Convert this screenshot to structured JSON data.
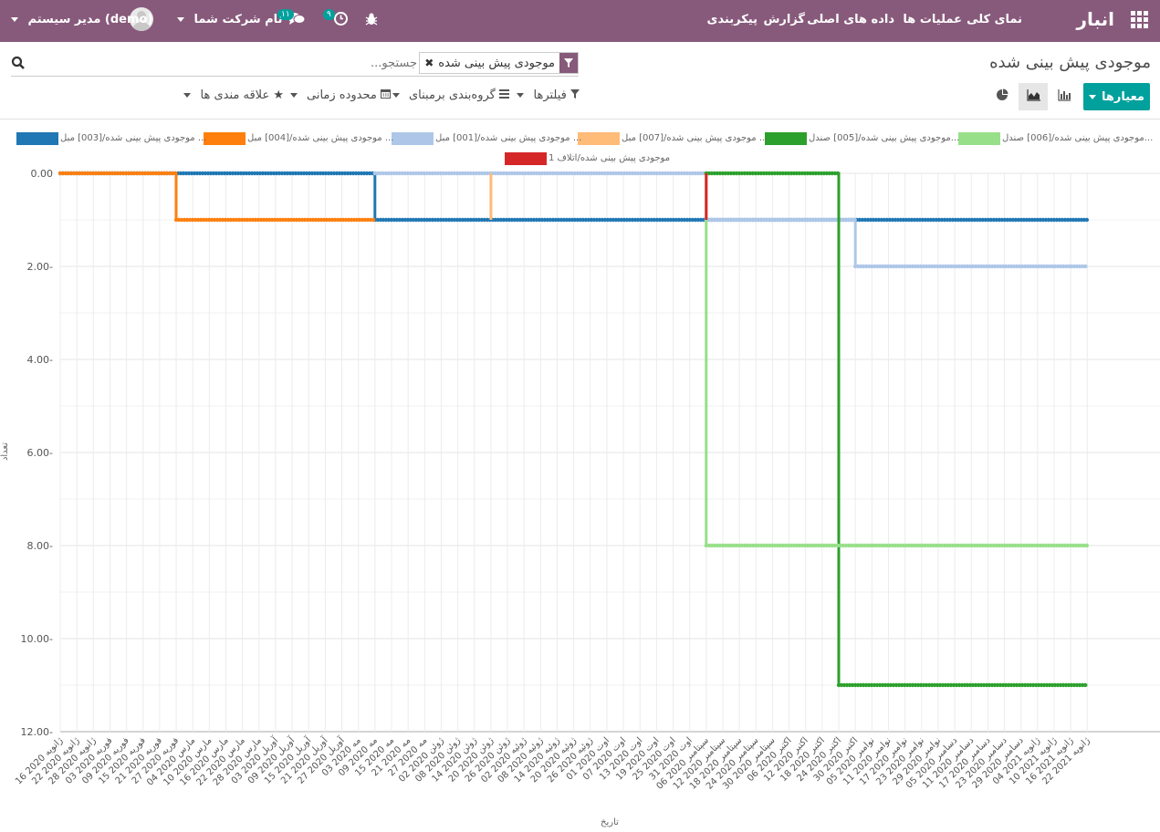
{
  "navbar": {
    "brand": "انبار",
    "menu": [
      "نمای کلی",
      "عملیات ها",
      "داده های اصلی",
      "گزارش",
      "پیکربندی"
    ],
    "activity_count": "۹",
    "messages_count": "۱۱",
    "company": "نام شرکت شما",
    "user": "مدیر سیستم (demo)"
  },
  "control_panel": {
    "title": "موجودی پیش بینی شده",
    "search_facet": "موجودی پیش بینی شده",
    "search_placeholder": "جستجو...",
    "measures_label": "معیارها",
    "filters_label": "فیلترها",
    "groupby_label": "گروه‌بندی برمبنای",
    "timerange_label": "محدوده زمانی",
    "favorites_label": "علاقه مندی ها"
  },
  "colors": {
    "navbar": "#875a7b",
    "accent": "#00a09d"
  },
  "icons": {
    "apps": "apps-grid-icon",
    "bug": "bug-icon",
    "activity": "clock-icon",
    "messages": "chat-icon",
    "search": "search-icon",
    "filter": "filter-icon",
    "pie": "pie-chart-icon",
    "bar": "bar-chart-icon",
    "line": "area-chart-icon",
    "calendar": "calendar-icon",
    "star": "star-icon",
    "groupby": "list-icon"
  },
  "chart_data": {
    "type": "line",
    "xlabel": "تاریخ",
    "ylabel": "تعداد",
    "ylim": [
      -12,
      0
    ],
    "yticks": [
      "0.00",
      "-2.00",
      "-4.00",
      "-6.00",
      "-8.00",
      "-10.00",
      "-12.00"
    ],
    "grid": true,
    "legend_position": "top",
    "categories": [
      "16 ژانویه 2020",
      "22 ژانویه 2020",
      "28 ژانویه 2020",
      "03 فوریه 2020",
      "09 فوریه 2020",
      "15 فوریه 2020",
      "21 فوریه 2020",
      "27 فوریه 2020",
      "04 مارس 2020",
      "10 مارس 2020",
      "16 مارس 2020",
      "22 مارس 2020",
      "28 مارس 2020",
      "03 آوریل 2020",
      "09 آوریل 2020",
      "15 آوریل 2020",
      "21 آوریل 2020",
      "27 آوریل 2020",
      "03 مه 2020",
      "09 مه 2020",
      "15 مه 2020",
      "21 مه 2020",
      "27 مه 2020",
      "02 ژوئن 2020",
      "08 ژوئن 2020",
      "14 ژوئن 2020",
      "20 ژوئن 2020",
      "26 ژوئن 2020",
      "02 ژوئیه 2020",
      "08 ژوئیه 2020",
      "14 ژوئیه 2020",
      "20 ژوئیه 2020",
      "26 ژوئیه 2020",
      "01 اوت 2020",
      "07 اوت 2020",
      "13 اوت 2020",
      "19 اوت 2020",
      "25 اوت 2020",
      "31 اوت 2020",
      "06 سپتامبر 2020",
      "12 سپتامبر 2020",
      "18 سپتامبر 2020",
      "24 سپتامبر 2020",
      "30 سپتامبر 2020",
      "06 اکتبر 2020",
      "12 اکتبر 2020",
      "18 اکتبر 2020",
      "24 اکتبر 2020",
      "30 اکتبر 2020",
      "05 نوامبر 2020",
      "11 نوامبر 2020",
      "17 نوامبر 2020",
      "23 نوامبر 2020",
      "29 نوامبر 2020",
      "05 دسامبر 2020",
      "11 دسامبر 2020",
      "17 دسامبر 2020",
      "23 دسامبر 2020",
      "29 دسامبر 2020",
      "04 ژانویه 2021",
      "10 ژانویه 2021",
      "16 ژانویه 2021",
      "22 ژانویه 2021"
    ],
    "series": [
      {
        "name": "موجودی پیش بینی شده/[003] مبل ...",
        "color": "#1f77b4",
        "points": [
          [
            "16 ژانویه 2020",
            0
          ],
          [
            "09 مه 2020",
            0
          ],
          [
            "09 مه 2020",
            -1
          ],
          [
            "22 ژانویه 2021",
            -1
          ]
        ]
      },
      {
        "name": "موجودی پیش بینی شده/[004] مبل ...",
        "color": "#ff7f0e",
        "points": [
          [
            "16 ژانویه 2020",
            0
          ],
          [
            "27 فوریه 2020",
            0
          ],
          [
            "27 فوریه 2020",
            -1
          ],
          [
            "09 مه 2020",
            -1
          ]
        ]
      },
      {
        "name": "موجودی پیش بینی شده/[001] مبل ...",
        "color": "#aec7e8",
        "points": [
          [
            "09 مه 2020",
            0
          ],
          [
            "06 سپتامبر 2020",
            0
          ],
          [
            "06 سپتامبر 2020",
            -1
          ],
          [
            "30 اکتبر 2020",
            -1
          ],
          [
            "30 اکتبر 2020",
            -2
          ],
          [
            "22 ژانویه 2021",
            -2
          ]
        ]
      },
      {
        "name": "موجودی پیش بینی شده/[007] مبل ...",
        "color": "#ffbb78",
        "points": [
          [
            "20 ژوئن 2020",
            0
          ],
          [
            "20 ژوئن 2020",
            -1
          ]
        ]
      },
      {
        "name": "موجودی پیش بینی شده/[005] صندل...",
        "color": "#2ca02c",
        "points": [
          [
            "06 سپتامبر 2020",
            0
          ],
          [
            "24 اکتبر 2020",
            0
          ],
          [
            "24 اکتبر 2020",
            -11
          ],
          [
            "22 ژانویه 2021",
            -11
          ]
        ]
      },
      {
        "name": "موجودی پیش بینی شده/[006] صندل...",
        "color": "#98df8a",
        "points": [
          [
            "06 سپتامبر 2020",
            0
          ],
          [
            "06 سپتامبر 2020",
            -8
          ],
          [
            "22 ژانویه 2021",
            -8
          ]
        ]
      },
      {
        "name": "موجودی پیش بینی شده/اتلاف 1",
        "color": "#d62728",
        "points": [
          [
            "06 سپتامبر 2020",
            0
          ],
          [
            "06 سپتامبر 2020",
            -1
          ]
        ]
      }
    ]
  }
}
